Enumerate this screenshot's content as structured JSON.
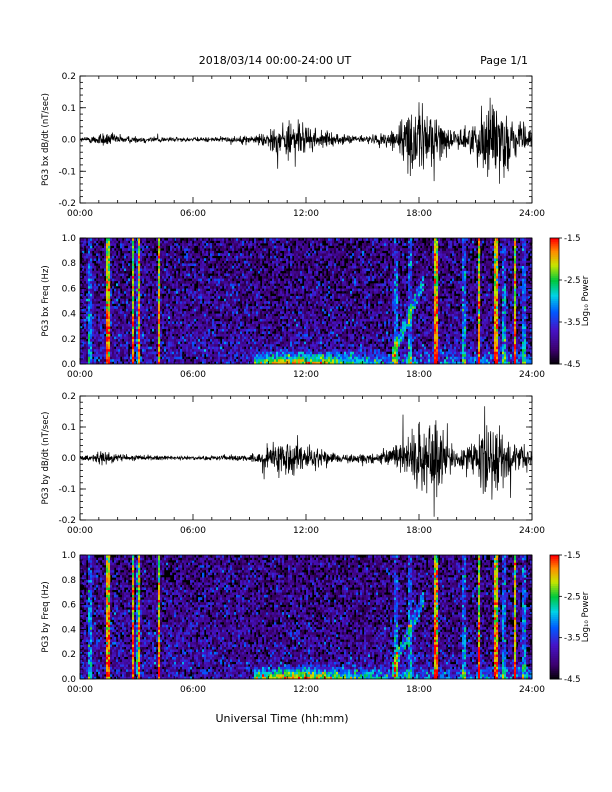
{
  "header": {
    "date_range": "2018/03/14  00:00-24:00 UT",
    "page": "Page 1/1"
  },
  "x_axis_label": "Universal Time (hh:mm)",
  "colorbar": {
    "label": "Log₁₀ Power",
    "ticks": [
      "-1.5",
      "-2.5",
      "-3.5",
      "-4.5"
    ],
    "range": [
      -4.5,
      -1.5
    ]
  },
  "colors": {
    "background": "#000000",
    "trace": "#000000"
  },
  "chart_data": [
    {
      "id": "bx-waveform",
      "type": "line",
      "ylabel": "PG3 bx dB/dt (nT/sec)",
      "x_ticks": [
        "00:00",
        "06:00",
        "12:00",
        "18:00",
        "24:00"
      ],
      "y_ticks": [
        "0.2",
        "0.1",
        "0.0",
        "-0.1",
        "-0.2"
      ],
      "xlim": [
        0,
        24
      ],
      "ylim": [
        -0.2,
        0.2
      ],
      "series": [
        {
          "x": [
            0,
            0.5,
            1.2,
            1.6,
            2.5,
            3.5,
            5,
            6,
            7,
            8,
            9.3,
            10,
            10.8,
            11.4,
            12,
            12.6,
            13.5,
            14.5,
            15.5,
            16.3,
            16.8,
            17.4,
            17.7,
            18.3,
            18.8,
            19.5,
            20,
            20.8,
            21.3,
            21.6,
            22,
            22.5,
            23,
            24
          ],
          "amplitude": [
            0.008,
            0.01,
            0.028,
            0.022,
            0.012,
            0.012,
            0.008,
            0.007,
            0.008,
            0.01,
            0.015,
            0.035,
            0.06,
            0.07,
            0.045,
            0.035,
            0.018,
            0.014,
            0.015,
            0.025,
            0.06,
            0.09,
            0.11,
            0.12,
            0.1,
            0.04,
            0.03,
            0.05,
            0.09,
            0.18,
            0.15,
            0.12,
            0.06,
            0.03
          ]
        }
      ]
    },
    {
      "id": "bx-spectrogram",
      "type": "heatmap",
      "ylabel": "PG3 bx Freq (Hz)",
      "x_ticks": [
        "00:00",
        "06:00",
        "12:00",
        "18:00",
        "24:00"
      ],
      "y_ticks": [
        "1.0",
        "0.8",
        "0.6",
        "0.4",
        "0.2",
        "0.0"
      ],
      "xlim": [
        0,
        24
      ],
      "ylim": [
        0,
        1.0
      ],
      "zlim": [
        -4.5,
        -1.5
      ],
      "band_hours": [
        1.5,
        2.8,
        3.1,
        4.2,
        18.9,
        21.2,
        22.1,
        23.1
      ],
      "broadband_hours": [
        0.5,
        1.5,
        2.8,
        3.1,
        4.2,
        16.8,
        17.5,
        18.9,
        20.4,
        21.2,
        22.1,
        22.5,
        23.1,
        23.6
      ],
      "energy_hump": {
        "start_hour": 9.2,
        "end_hour": 24,
        "peak_hour": 11.5,
        "max_freq": 0.12
      }
    },
    {
      "id": "by-waveform",
      "type": "line",
      "ylabel": "PG3 by dB/dt (nT/sec)",
      "x_ticks": [
        "00:00",
        "06:00",
        "12:00",
        "18:00",
        "24:00"
      ],
      "y_ticks": [
        "0.2",
        "0.1",
        "0.0",
        "-0.1",
        "-0.2"
      ],
      "xlim": [
        0,
        24
      ],
      "ylim": [
        -0.2,
        0.2
      ],
      "series": [
        {
          "x": [
            0,
            0.5,
            1.2,
            1.6,
            2.5,
            3.5,
            5,
            6,
            7,
            8,
            9.3,
            10,
            10.8,
            11.4,
            12,
            12.6,
            13.5,
            14.5,
            15.5,
            16.3,
            16.8,
            17.4,
            17.7,
            18.3,
            18.8,
            19.5,
            20,
            20.8,
            21.3,
            21.6,
            22,
            22.5,
            23,
            24
          ],
          "amplitude": [
            0.008,
            0.01,
            0.025,
            0.02,
            0.01,
            0.01,
            0.007,
            0.007,
            0.008,
            0.01,
            0.015,
            0.035,
            0.055,
            0.065,
            0.045,
            0.035,
            0.018,
            0.014,
            0.015,
            0.022,
            0.05,
            0.07,
            0.09,
            0.1,
            0.18,
            0.06,
            0.03,
            0.05,
            0.09,
            0.17,
            0.15,
            0.1,
            0.05,
            0.03
          ]
        }
      ]
    },
    {
      "id": "by-spectrogram",
      "type": "heatmap",
      "ylabel": "PG3 by Freq (Hz)",
      "x_ticks": [
        "00:00",
        "06:00",
        "12:00",
        "18:00",
        "24:00"
      ],
      "y_ticks": [
        "1.0",
        "0.8",
        "0.6",
        "0.4",
        "0.2",
        "0.0"
      ],
      "xlim": [
        0,
        24
      ],
      "ylim": [
        0,
        1.0
      ],
      "zlim": [
        -4.5,
        -1.5
      ],
      "band_hours": [
        1.5,
        2.8,
        3.1,
        4.2,
        18.9,
        21.2,
        22.1,
        23.1
      ],
      "broadband_hours": [
        0.5,
        1.5,
        2.8,
        3.1,
        4.2,
        16.8,
        17.5,
        18.9,
        20.4,
        21.2,
        22.1,
        22.5,
        23.1,
        23.6
      ],
      "energy_hump": {
        "start_hour": 9.2,
        "end_hour": 24,
        "peak_hour": 11.5,
        "max_freq": 0.12
      }
    }
  ]
}
